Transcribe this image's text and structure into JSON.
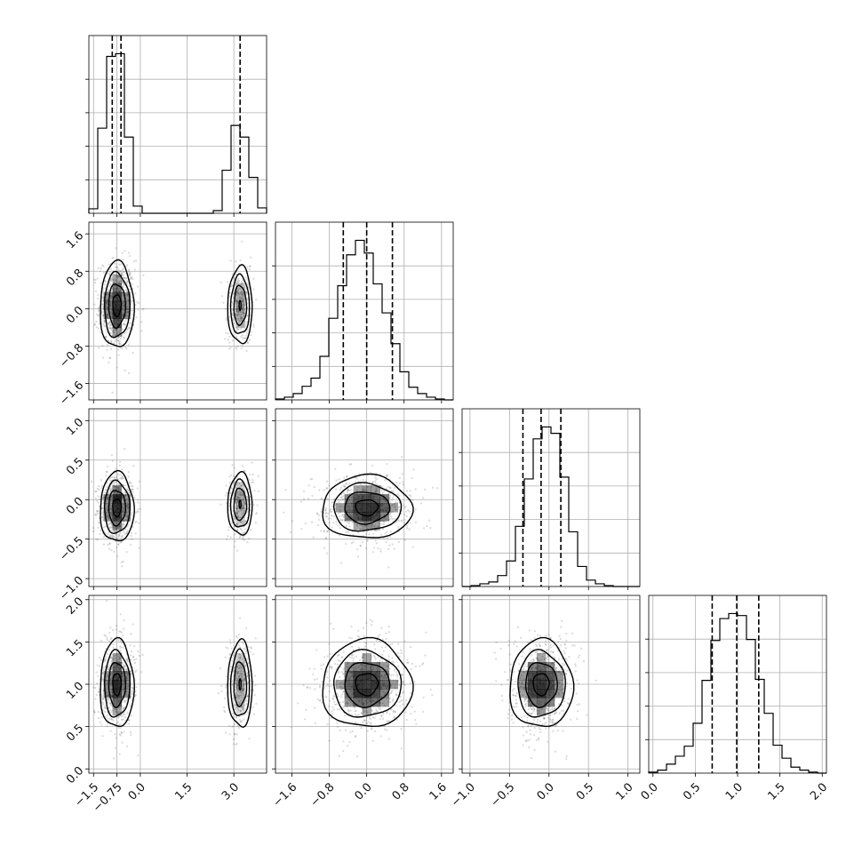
{
  "chart_data": {
    "type": "corner",
    "n_params": 4,
    "grid": true,
    "axes": [
      {
        "index": 0,
        "range": [
          -1.65,
          4.05
        ],
        "ticks": [
          -1.5,
          -0.75,
          0.0,
          1.5,
          3.0
        ],
        "tick_labels": [
          "-1.5",
          "-0.75",
          "0.0",
          "1.5",
          "3.0"
        ],
        "bottom_ticks": [
          -1.5,
          -0.75,
          0.0,
          1.5,
          3.0
        ],
        "bottom_tick_labels": [
          "−1.5",
          "−0.75",
          "0.0",
          "1.5",
          "3.0"
        ]
      },
      {
        "index": 1,
        "range": [
          -1.95,
          1.85
        ],
        "ticks": [
          -1.6,
          -0.8,
          0.0,
          0.8,
          1.6
        ],
        "tick_labels": [
          "−1.6",
          "−0.8",
          "0.0",
          "0.8",
          "1.6"
        ]
      },
      {
        "index": 2,
        "range": [
          -1.1,
          1.15
        ],
        "ticks": [
          -1.0,
          -0.5,
          0.0,
          0.5,
          1.0
        ],
        "tick_labels": [
          "−1.0",
          "−0.5",
          "0.0",
          "0.5",
          "1.0"
        ]
      },
      {
        "index": 3,
        "range": [
          -0.05,
          2.05
        ],
        "ticks": [
          0.0,
          0.5,
          1.0,
          1.5,
          2.0
        ],
        "tick_labels": [
          "0.0",
          "0.5",
          "1.0",
          "1.5",
          "2.0"
        ]
      }
    ],
    "marginals": [
      {
        "param": 0,
        "bin_edges": [
          -1.65,
          -1.365,
          -1.08,
          -0.795,
          -0.51,
          -0.225,
          0.06,
          0.345,
          0.63,
          0.915,
          1.2,
          1.485,
          1.77,
          2.055,
          2.34,
          2.625,
          2.91,
          3.195,
          3.48,
          3.765,
          4.05
        ],
        "counts": [
          5,
          95,
          175,
          178,
          85,
          8,
          0,
          0,
          0,
          0,
          0,
          0,
          0,
          0,
          3,
          48,
          98,
          85,
          40,
          6
        ],
        "quantiles": [
          -0.9,
          -0.62,
          3.2
        ]
      },
      {
        "param": 1,
        "bin_edges": [
          -1.95,
          -1.76,
          -1.57,
          -1.38,
          -1.19,
          -1.0,
          -0.81,
          -0.62,
          -0.43,
          -0.24,
          -0.05,
          0.14,
          0.33,
          0.52,
          0.71,
          0.9,
          1.09,
          1.28,
          1.47,
          1.66,
          1.85
        ],
        "counts": [
          1,
          3,
          7,
          15,
          24,
          48,
          90,
          126,
          160,
          176,
          162,
          128,
          96,
          62,
          31,
          14,
          7,
          3,
          1,
          0
        ],
        "quantiles": [
          -0.5,
          0.0,
          0.55
        ]
      },
      {
        "param": 2,
        "bin_edges": [
          -1.1,
          -0.9875,
          -0.875,
          -0.7625,
          -0.65,
          -0.5375,
          -0.425,
          -0.3125,
          -0.2,
          -0.0875,
          0.025,
          0.1375,
          0.25,
          0.3625,
          0.475,
          0.5875,
          0.7,
          0.8125,
          0.925,
          1.0375,
          1.15
        ],
        "counts": [
          0,
          1,
          3,
          5,
          12,
          28,
          66,
          118,
          162,
          175,
          168,
          120,
          60,
          22,
          7,
          3,
          1,
          0,
          0,
          0
        ],
        "quantiles": [
          -0.33,
          -0.1,
          0.15
        ]
      },
      {
        "param": 3,
        "bin_edges": [
          -0.05,
          0.055,
          0.16,
          0.265,
          0.37,
          0.475,
          0.58,
          0.685,
          0.79,
          0.895,
          1.0,
          1.105,
          1.21,
          1.315,
          1.42,
          1.525,
          1.63,
          1.735,
          1.84,
          1.945,
          2.05
        ],
        "counts": [
          1,
          3,
          9,
          17,
          27,
          50,
          93,
          133,
          155,
          160,
          158,
          134,
          94,
          60,
          28,
          15,
          6,
          3,
          1,
          0
        ],
        "quantiles": [
          0.7,
          0.99,
          1.25
        ]
      }
    ],
    "joint": [
      {
        "x_param": 0,
        "y_param": 1,
        "modes": [
          {
            "center": [
              -0.75,
              0.07
            ],
            "sigma": [
              0.27,
              0.46
            ],
            "density_scale": 1.0,
            "peak": [
              -0.8,
              -0.1
            ]
          },
          {
            "center": [
              3.2,
              0.07
            ],
            "sigma": [
              0.2,
              0.42
            ],
            "density_scale": 0.45
          }
        ]
      },
      {
        "x_param": 0,
        "y_param": 2,
        "modes": [
          {
            "center": [
              -0.75,
              -0.1
            ],
            "sigma": [
              0.27,
              0.22
            ],
            "density_scale": 1.0,
            "peak": [
              -0.85,
              0.0
            ]
          },
          {
            "center": [
              3.2,
              -0.06
            ],
            "sigma": [
              0.2,
              0.2
            ],
            "density_scale": 0.45
          }
        ]
      },
      {
        "x_param": 0,
        "y_param": 3,
        "modes": [
          {
            "center": [
              -0.75,
              1.0
            ],
            "sigma": [
              0.27,
              0.26
            ],
            "density_scale": 1.0
          },
          {
            "center": [
              3.2,
              1.0
            ],
            "sigma": [
              0.2,
              0.26
            ],
            "density_scale": 0.45
          }
        ]
      },
      {
        "x_param": 1,
        "y_param": 2,
        "modes": [
          {
            "center": [
              0.0,
              -0.1
            ],
            "sigma": [
              0.48,
              0.2
            ],
            "density_scale": 1.0,
            "peak": [
              0.05,
              -0.12
            ]
          }
        ]
      },
      {
        "x_param": 1,
        "y_param": 3,
        "modes": [
          {
            "center": [
              0.0,
              1.0
            ],
            "sigma": [
              0.48,
              0.26
            ],
            "density_scale": 1.0,
            "peak": [
              -0.05,
              1.0
            ]
          }
        ]
      },
      {
        "x_param": 2,
        "y_param": 3,
        "modes": [
          {
            "center": [
              -0.1,
              1.0
            ],
            "sigma": [
              0.2,
              0.26
            ],
            "density_scale": 1.0,
            "peak": [
              -0.12,
              0.99
            ]
          }
        ]
      }
    ],
    "contour_levels_sigma": [
      0.5,
      1.0,
      1.5,
      2.0
    ],
    "colors": {
      "line": "#000000",
      "grid": "#b0b0b0",
      "scatter": "#555555",
      "density": "#000000"
    }
  }
}
